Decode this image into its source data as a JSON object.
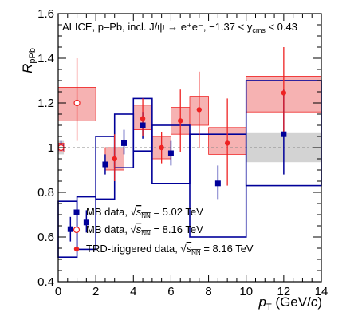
{
  "colors": {
    "mb502": "#000099",
    "red": "#ee2222",
    "red_fill": "#f4a5a5",
    "gray_band": "#d3d3d3",
    "ref_line": "#888888"
  },
  "header": {
    "text": "ALICE, p–Pb, incl. J/ψ → e⁺e⁻, −1.37 < y",
    "sub": "cms",
    "tail": " < 0.43"
  },
  "chart_data": {
    "type": "scatter",
    "xlim": [
      0,
      14
    ],
    "ylim": [
      0.4,
      1.6
    ],
    "x_ticks": [
      "0",
      "2",
      "4",
      "6",
      "8",
      "10",
      "12",
      "14"
    ],
    "y_ticks": [
      "0.4",
      "0.6",
      "0.8",
      "1",
      "1.2",
      "1.4",
      "1.6"
    ],
    "y_tick_values": [
      0.4,
      0.6,
      0.8,
      1.0,
      1.2,
      1.4,
      1.6
    ],
    "x_tick_values": [
      0,
      2,
      4,
      6,
      8,
      10,
      12,
      14
    ],
    "xlabel": {
      "main": "p",
      "sub": "T",
      "unit": " (GeV/",
      "unit_it": "c",
      "unit_end": ")"
    },
    "ylabel": {
      "main": "R",
      "sub": "pPb"
    },
    "reference_line": 1.0,
    "global_uncertainty_band": [
      {
        "x": [
          0,
          0.3
        ],
        "y": [
          0.97,
          1.03
        ]
      },
      {
        "x": [
          10,
          14
        ],
        "y": [
          0.935,
          1.065
        ]
      }
    ],
    "series": [
      {
        "legend": "MB data, ",
        "energy": "= 5.02 TeV",
        "marker": "square",
        "points": [
          {
            "x": 0.15,
            "xlo": 0.0,
            "xhi": 0.3,
            "y": 1.0,
            "stat": [
              0.985,
              1.03
            ],
            "sys": [
              0.98,
              1.02
            ]
          },
          {
            "x": 0.65,
            "xlo": 0.0,
            "xhi": 1.0,
            "y": 0.635,
            "stat": [
              0.58,
              0.69
            ],
            "sys": [
              0.51,
              0.76
            ]
          },
          {
            "x": 1.5,
            "xlo": 1.0,
            "xhi": 2.0,
            "y": 0.665,
            "stat": [
              0.62,
              0.72
            ],
            "sys": [
              0.545,
              0.78
            ]
          },
          {
            "x": 2.5,
            "xlo": 2.0,
            "xhi": 3.0,
            "y": 0.925,
            "stat": [
              0.88,
              0.97
            ],
            "sys": [
              0.77,
              1.05
            ]
          },
          {
            "x": 3.5,
            "xlo": 3.0,
            "xhi": 4.0,
            "y": 1.02,
            "stat": [
              0.97,
              1.08
            ],
            "sys": [
              0.91,
              1.15
            ]
          },
          {
            "x": 4.5,
            "xlo": 4.0,
            "xhi": 5.0,
            "y": 1.1,
            "stat": [
              1.04,
              1.16
            ],
            "sys": [
              0.985,
              1.22
            ]
          },
          {
            "x": 6.0,
            "xlo": 5.0,
            "xhi": 7.0,
            "y": 0.975,
            "stat": [
              0.92,
              1.03
            ],
            "sys": [
              0.84,
              1.1
            ]
          },
          {
            "x": 8.5,
            "xlo": 7.0,
            "xhi": 10.0,
            "y": 0.84,
            "stat": [
              0.77,
              0.92
            ],
            "sys": [
              0.6,
              1.06
            ]
          },
          {
            "x": 12.0,
            "xlo": 10.0,
            "xhi": 14.0,
            "y": 1.06,
            "stat": [
              0.88,
              1.26
            ],
            "sys": [
              0.83,
              1.3
            ]
          }
        ]
      },
      {
        "legend": "MB data, ",
        "energy": "= 8.16 TeV",
        "marker": "open-circle",
        "points": [
          {
            "x": 0.15,
            "xlo": 0.0,
            "xhi": 0.3,
            "y": 1.0,
            "stat": [
              0.985,
              1.015
            ],
            "sys": [
              0.98,
              1.02
            ]
          },
          {
            "x": 1.0,
            "xlo": 0.0,
            "xhi": 2.0,
            "y": 1.2,
            "stat": [
              1.03,
              1.4
            ],
            "sys": [
              1.12,
              1.27
            ]
          }
        ]
      },
      {
        "legend": "TRD-triggered data, ",
        "energy": "= 8.16 TeV",
        "marker": "filled-circle",
        "points": [
          {
            "x": 3.0,
            "xlo": 2.5,
            "xhi": 3.5,
            "y": 0.95,
            "stat": [
              0.85,
              1.06
            ],
            "sys": [
              0.9,
              1.0
            ]
          },
          {
            "x": 4.5,
            "xlo": 4.0,
            "xhi": 5.0,
            "y": 1.13,
            "stat": [
              1.05,
              1.22
            ],
            "sys": [
              1.08,
              1.19
            ]
          },
          {
            "x": 5.5,
            "xlo": 5.0,
            "xhi": 6.0,
            "y": 1.0,
            "stat": [
              0.93,
              1.07
            ],
            "sys": [
              0.95,
              1.05
            ]
          },
          {
            "x": 6.5,
            "xlo": 6.0,
            "xhi": 7.0,
            "y": 1.12,
            "stat": [
              0.98,
              1.26
            ],
            "sys": [
              1.06,
              1.18
            ]
          },
          {
            "x": 7.5,
            "xlo": 7.0,
            "xhi": 8.0,
            "y": 1.17,
            "stat": [
              1.0,
              1.34
            ],
            "sys": [
              1.1,
              1.23
            ]
          },
          {
            "x": 9.0,
            "xlo": 8.0,
            "xhi": 10.0,
            "y": 1.02,
            "stat": [
              0.83,
              1.22
            ],
            "sys": [
              0.97,
              1.09
            ]
          },
          {
            "x": 12.0,
            "xlo": 10.0,
            "xhi": 14.0,
            "y": 1.245,
            "stat": [
              1.06,
              1.45
            ],
            "sys": [
              1.16,
              1.32
            ]
          }
        ]
      }
    ],
    "legend_sqrt": "s",
    "legend_sqrt_sub": "NN"
  }
}
